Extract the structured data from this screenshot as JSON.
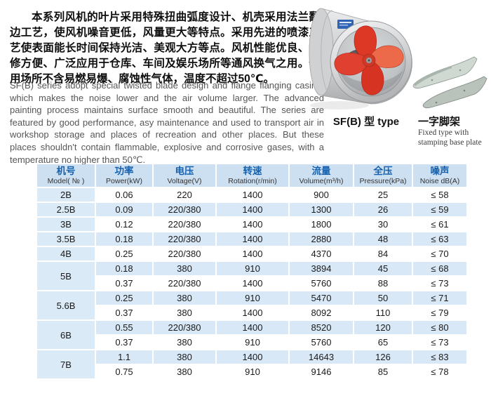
{
  "intro": {
    "chinese": "本系列风机的叶片采用特殊扭曲弧度设计、机壳采用法兰翻边工艺，使风机噪音更低，风量更大等特点。采用先进的喷漆工艺使表面能长时间保持光洁、美观大方等点。风机性能优良、维修方便、广泛应用于仓库、车间及娱乐场所等通风换气之用。使用场所不含易燃易爆、腐蚀性气体，温度不超过50℃。",
    "english": "SF(B) series adopt special twisted blade design and flange flanging casing, which makes the noise lower and the air volume larger. The advanced painting process maintains surface smooth and beautiful. The series are featured by good performance, asy maintenance and used to transport air in workshop storage and places of recreation and other places. But these places shouldn't contain flammable, explosive and corrosive gases, with a temperature no higher than 50℃."
  },
  "figures": {
    "fan_caption": "SF(B) 型 type",
    "bracket_caption_cn": "一字脚架",
    "bracket_caption_en_line1": "Fixed type with",
    "bracket_caption_en_line2": "stamping base plate"
  },
  "colors": {
    "header_bg": "#cde0f2",
    "row_blue": "#d8e8f7",
    "model_col_bg": "#dbeaf7",
    "header_text_blue": "#1661ae",
    "fan_blade_red": "#dd3726"
  },
  "table": {
    "headers": [
      {
        "cn": "机号",
        "en": "Model( № )"
      },
      {
        "cn": "功率",
        "en": "Power(kW)"
      },
      {
        "cn": "电压",
        "en": "Voltage(V)"
      },
      {
        "cn": "转速",
        "en": "Rotation(r/min)"
      },
      {
        "cn": "流量",
        "en": "Volume(m³/h)"
      },
      {
        "cn": "全压",
        "en": "Pressure(kPa)"
      },
      {
        "cn": "噪声",
        "en": "Noise dB(A)"
      }
    ],
    "groups": [
      {
        "model": "2B",
        "rows": [
          [
            "0.06",
            "220",
            "1400",
            "900",
            "25",
            "≤ 58"
          ]
        ]
      },
      {
        "model": "2.5B",
        "rows": [
          [
            "0.09",
            "220/380",
            "1400",
            "1300",
            "26",
            "≤ 59"
          ]
        ]
      },
      {
        "model": "3B",
        "rows": [
          [
            "0.12",
            "220/380",
            "1400",
            "1800",
            "30",
            "≤ 61"
          ]
        ]
      },
      {
        "model": "3.5B",
        "rows": [
          [
            "0.18",
            "220/380",
            "1400",
            "2880",
            "48",
            "≤ 63"
          ]
        ]
      },
      {
        "model": "4B",
        "rows": [
          [
            "0.25",
            "220/380",
            "1400",
            "4370",
            "84",
            "≤ 70"
          ]
        ]
      },
      {
        "model": "5B",
        "rows": [
          [
            "0.18",
            "380",
            "910",
            "3894",
            "45",
            "≤ 68"
          ],
          [
            "0.37",
            "220/380",
            "1400",
            "5760",
            "88",
            "≤ 73"
          ]
        ]
      },
      {
        "model": "5.6B",
        "rows": [
          [
            "0.25",
            "380",
            "910",
            "5470",
            "50",
            "≤ 71"
          ],
          [
            "0.37",
            "380",
            "1400",
            "8092",
            "110",
            "≤ 79"
          ]
        ]
      },
      {
        "model": "6B",
        "rows": [
          [
            "0.55",
            "220/380",
            "1400",
            "8520",
            "120",
            "≤ 80"
          ],
          [
            "0.37",
            "380",
            "910",
            "5760",
            "65",
            "≤ 73"
          ]
        ]
      },
      {
        "model": "7B",
        "rows": [
          [
            "1.1",
            "380",
            "1400",
            "14643",
            "126",
            "≤ 83"
          ],
          [
            "0.75",
            "380",
            "910",
            "9146",
            "85",
            "≤ 78"
          ]
        ]
      }
    ]
  }
}
